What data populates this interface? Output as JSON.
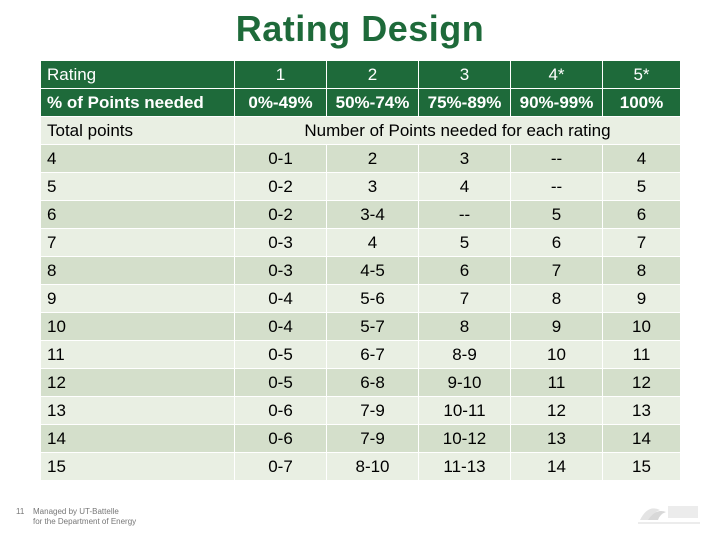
{
  "title": "Rating Design",
  "header": {
    "rating_label": "Rating",
    "ratings": [
      "1",
      "2",
      "3",
      "4*",
      "5*"
    ],
    "percent_label": "% of Points needed",
    "percents": [
      "0%-49%",
      "50%-74%",
      "75%-89%",
      "90%-99%",
      "100%"
    ],
    "total_label": "Total points",
    "span_label": "Number of Points needed for each rating"
  },
  "rows": [
    {
      "total": "4",
      "cells": [
        "0-1",
        "2",
        "3",
        "--",
        "4"
      ]
    },
    {
      "total": "5",
      "cells": [
        "0-2",
        "3",
        "4",
        "--",
        "5"
      ]
    },
    {
      "total": "6",
      "cells": [
        "0-2",
        "3-4",
        "--",
        "5",
        "6"
      ]
    },
    {
      "total": "7",
      "cells": [
        "0-3",
        "4",
        "5",
        "6",
        "7"
      ]
    },
    {
      "total": "8",
      "cells": [
        "0-3",
        "4-5",
        "6",
        "7",
        "8"
      ]
    },
    {
      "total": "9",
      "cells": [
        "0-4",
        "5-6",
        "7",
        "8",
        "9"
      ]
    },
    {
      "total": "10",
      "cells": [
        "0-4",
        "5-7",
        "8",
        "9",
        "10"
      ]
    },
    {
      "total": "11",
      "cells": [
        "0-5",
        "6-7",
        "8-9",
        "10",
        "11"
      ]
    },
    {
      "total": "12",
      "cells": [
        "0-5",
        "6-8",
        "9-10",
        "11",
        "12"
      ]
    },
    {
      "total": "13",
      "cells": [
        "0-6",
        "7-9",
        "10-11",
        "12",
        "13"
      ]
    },
    {
      "total": "14",
      "cells": [
        "0-6",
        "7-9",
        "10-12",
        "13",
        "14"
      ]
    },
    {
      "total": "15",
      "cells": [
        "0-7",
        "8-10",
        "11-13",
        "14",
        "15"
      ]
    }
  ],
  "footer": {
    "page_number": "11",
    "managed_line1": "Managed by UT-Battelle",
    "managed_line2": "for the Department of Energy"
  },
  "colors": {
    "header_green": "#1e6a3a",
    "row_dark": "#d4dfcb",
    "row_light": "#e9efe3"
  }
}
